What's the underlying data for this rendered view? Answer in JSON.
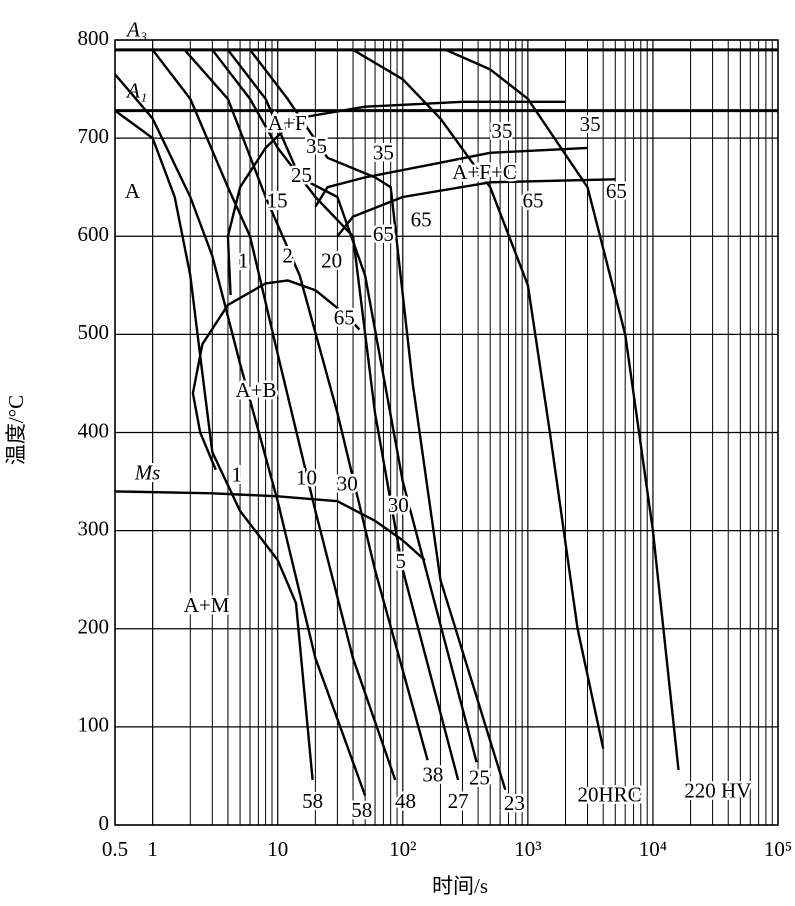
{
  "chart_data": {
    "type": "line",
    "xscale": "log",
    "xlabel": "时间/s",
    "ylabel": "温度/°C",
    "xlim": [
      0.5,
      100000
    ],
    "ylim": [
      0,
      800
    ],
    "xticks": [
      0.5,
      1,
      10,
      {
        "value": 100,
        "label": "10²"
      },
      {
        "value": 1000,
        "label": "10³"
      },
      {
        "value": 10000,
        "label": "10⁴"
      },
      {
        "value": 100000,
        "label": "10⁵"
      }
    ],
    "xminorticks": [
      2,
      3,
      4,
      5,
      6,
      7,
      8,
      9,
      20,
      30,
      40,
      50,
      60,
      70,
      80,
      90,
      200,
      300,
      400,
      500,
      600,
      700,
      800,
      900,
      2000,
      3000,
      4000,
      5000,
      6000,
      7000,
      8000,
      9000,
      20000,
      30000,
      40000,
      50000,
      60000,
      70000,
      80000,
      90000
    ],
    "yticks": [
      0,
      100,
      200,
      300,
      400,
      500,
      600,
      700,
      800
    ],
    "grid": true,
    "color": "#000000",
    "critical_lines": [
      {
        "label": "A₃",
        "value": 790
      },
      {
        "label": "A₁",
        "value": 728
      }
    ],
    "series": [
      {
        "x": [
          0.5,
          1,
          1.5,
          2,
          2.5,
          3,
          5,
          10,
          14,
          19
        ],
        "y": [
          728,
          700,
          640,
          560,
          460,
          380,
          320,
          270,
          226,
          46
        ]
      },
      {
        "x": [
          0.5,
          1,
          2,
          3,
          5,
          10,
          20,
          50
        ],
        "y": [
          765,
          720,
          640,
          580,
          470,
          330,
          170,
          30
        ]
      },
      {
        "x": [
          1,
          2,
          4,
          6,
          10,
          20,
          40,
          87
        ],
        "y": [
          790,
          740,
          650,
          600,
          480,
          320,
          170,
          46
        ]
      },
      {
        "x": [
          1.8,
          4,
          8,
          15,
          30,
          60,
          158
        ],
        "y": [
          790,
          740,
          640,
          560,
          420,
          260,
          66
        ]
      },
      {
        "x": [
          3,
          6,
          10,
          20,
          40,
          60,
          100,
          277
        ],
        "y": [
          790,
          740,
          690,
          640,
          600,
          420,
          260,
          46
        ]
      },
      {
        "x": [
          4,
          8,
          15,
          30,
          50,
          100,
          389
        ],
        "y": [
          790,
          740,
          660,
          640,
          560,
          350,
          64
        ]
      },
      {
        "x": [
          6,
          12,
          25,
          60,
          80,
          120,
          200,
          660
        ],
        "y": [
          790,
          740,
          680,
          660,
          650,
          450,
          250,
          36
        ]
      },
      {
        "x": [
          40,
          100,
          200,
          500,
          1000,
          1500,
          2500,
          4000
        ],
        "y": [
          790,
          760,
          720,
          650,
          550,
          400,
          200,
          78
        ]
      },
      {
        "x": [
          220,
          500,
          1000,
          3000,
          6000,
          10000,
          16000
        ],
        "y": [
          790,
          770,
          740,
          650,
          500,
          300,
          56
        ]
      },
      {
        "x": [
          14,
          8,
          5,
          4,
          4.2
        ],
        "y": [
          720,
          690,
          650,
          600,
          540
        ]
      },
      {
        "x": [
          14,
          50,
          300,
          2000
        ],
        "y": [
          720,
          732,
          737,
          737
        ]
      },
      {
        "x": [
          20,
          25,
          50,
          200,
          500,
          3000
        ],
        "y": [
          630,
          650,
          660,
          675,
          685,
          690
        ]
      },
      {
        "x": [
          30,
          40,
          100,
          500,
          5000
        ],
        "y": [
          600,
          620,
          640,
          655,
          658
        ]
      },
      {
        "x": [
          3.2,
          2.4,
          2.1,
          2.5,
          4,
          8,
          12,
          20,
          35,
          45
        ],
        "y": [
          362,
          400,
          440,
          490,
          530,
          552,
          555,
          545,
          520,
          505
        ]
      },
      {
        "x": [
          0.5,
          3,
          10,
          30,
          60,
          100,
          150
        ],
        "y": [
          340,
          338,
          335,
          330,
          310,
          290,
          270
        ]
      }
    ],
    "annotations": [
      {
        "text": "A",
        "x": 0.69,
        "y": 644
      },
      {
        "text": "A+F",
        "x": 11.9,
        "y": 713
      },
      {
        "text": "35",
        "x": 20.4,
        "y": 690
      },
      {
        "text": "25",
        "x": 15.5,
        "y": 660
      },
      {
        "text": "15",
        "x": 9.9,
        "y": 634
      },
      {
        "text": "35",
        "x": 70,
        "y": 683
      },
      {
        "text": "A+F+C",
        "x": 450,
        "y": 663
      },
      {
        "text": "35",
        "x": 620,
        "y": 705
      },
      {
        "text": "35",
        "x": 3150,
        "y": 712
      },
      {
        "text": "65",
        "x": 1100,
        "y": 634
      },
      {
        "text": "65",
        "x": 5100,
        "y": 644
      },
      {
        "text": "65",
        "x": 70,
        "y": 600
      },
      {
        "text": "65",
        "x": 140,
        "y": 615
      },
      {
        "text": "20",
        "x": 27,
        "y": 573
      },
      {
        "text": "2",
        "x": 12,
        "y": 578
      },
      {
        "text": "1",
        "x": 5.3,
        "y": 573
      },
      {
        "text": "65",
        "x": 34,
        "y": 515
      },
      {
        "text": "A+B",
        "x": 6.7,
        "y": 441
      },
      {
        "text": "Ms",
        "x": 0.91,
        "y": 357
      },
      {
        "text": "1",
        "x": 4.7,
        "y": 355
      },
      {
        "text": "10",
        "x": 17,
        "y": 352
      },
      {
        "text": "30",
        "x": 36,
        "y": 346
      },
      {
        "text": "30",
        "x": 92,
        "y": 324
      },
      {
        "text": "5",
        "x": 96,
        "y": 267
      },
      {
        "text": "A+M",
        "x": 2.7,
        "y": 222
      },
      {
        "text": "58",
        "x": 19,
        "y": 22
      },
      {
        "text": "58",
        "x": 47,
        "y": 13
      },
      {
        "text": "48",
        "x": 105,
        "y": 22
      },
      {
        "text": "38",
        "x": 174,
        "y": 49
      },
      {
        "text": "27",
        "x": 277,
        "y": 22
      },
      {
        "text": "25",
        "x": 410,
        "y": 46
      },
      {
        "text": "23",
        "x": 780,
        "y": 20
      },
      {
        "text": "20HRC",
        "x": 4500,
        "y": 29
      },
      {
        "text": "220 HV",
        "x": 33000,
        "y": 33
      }
    ]
  }
}
